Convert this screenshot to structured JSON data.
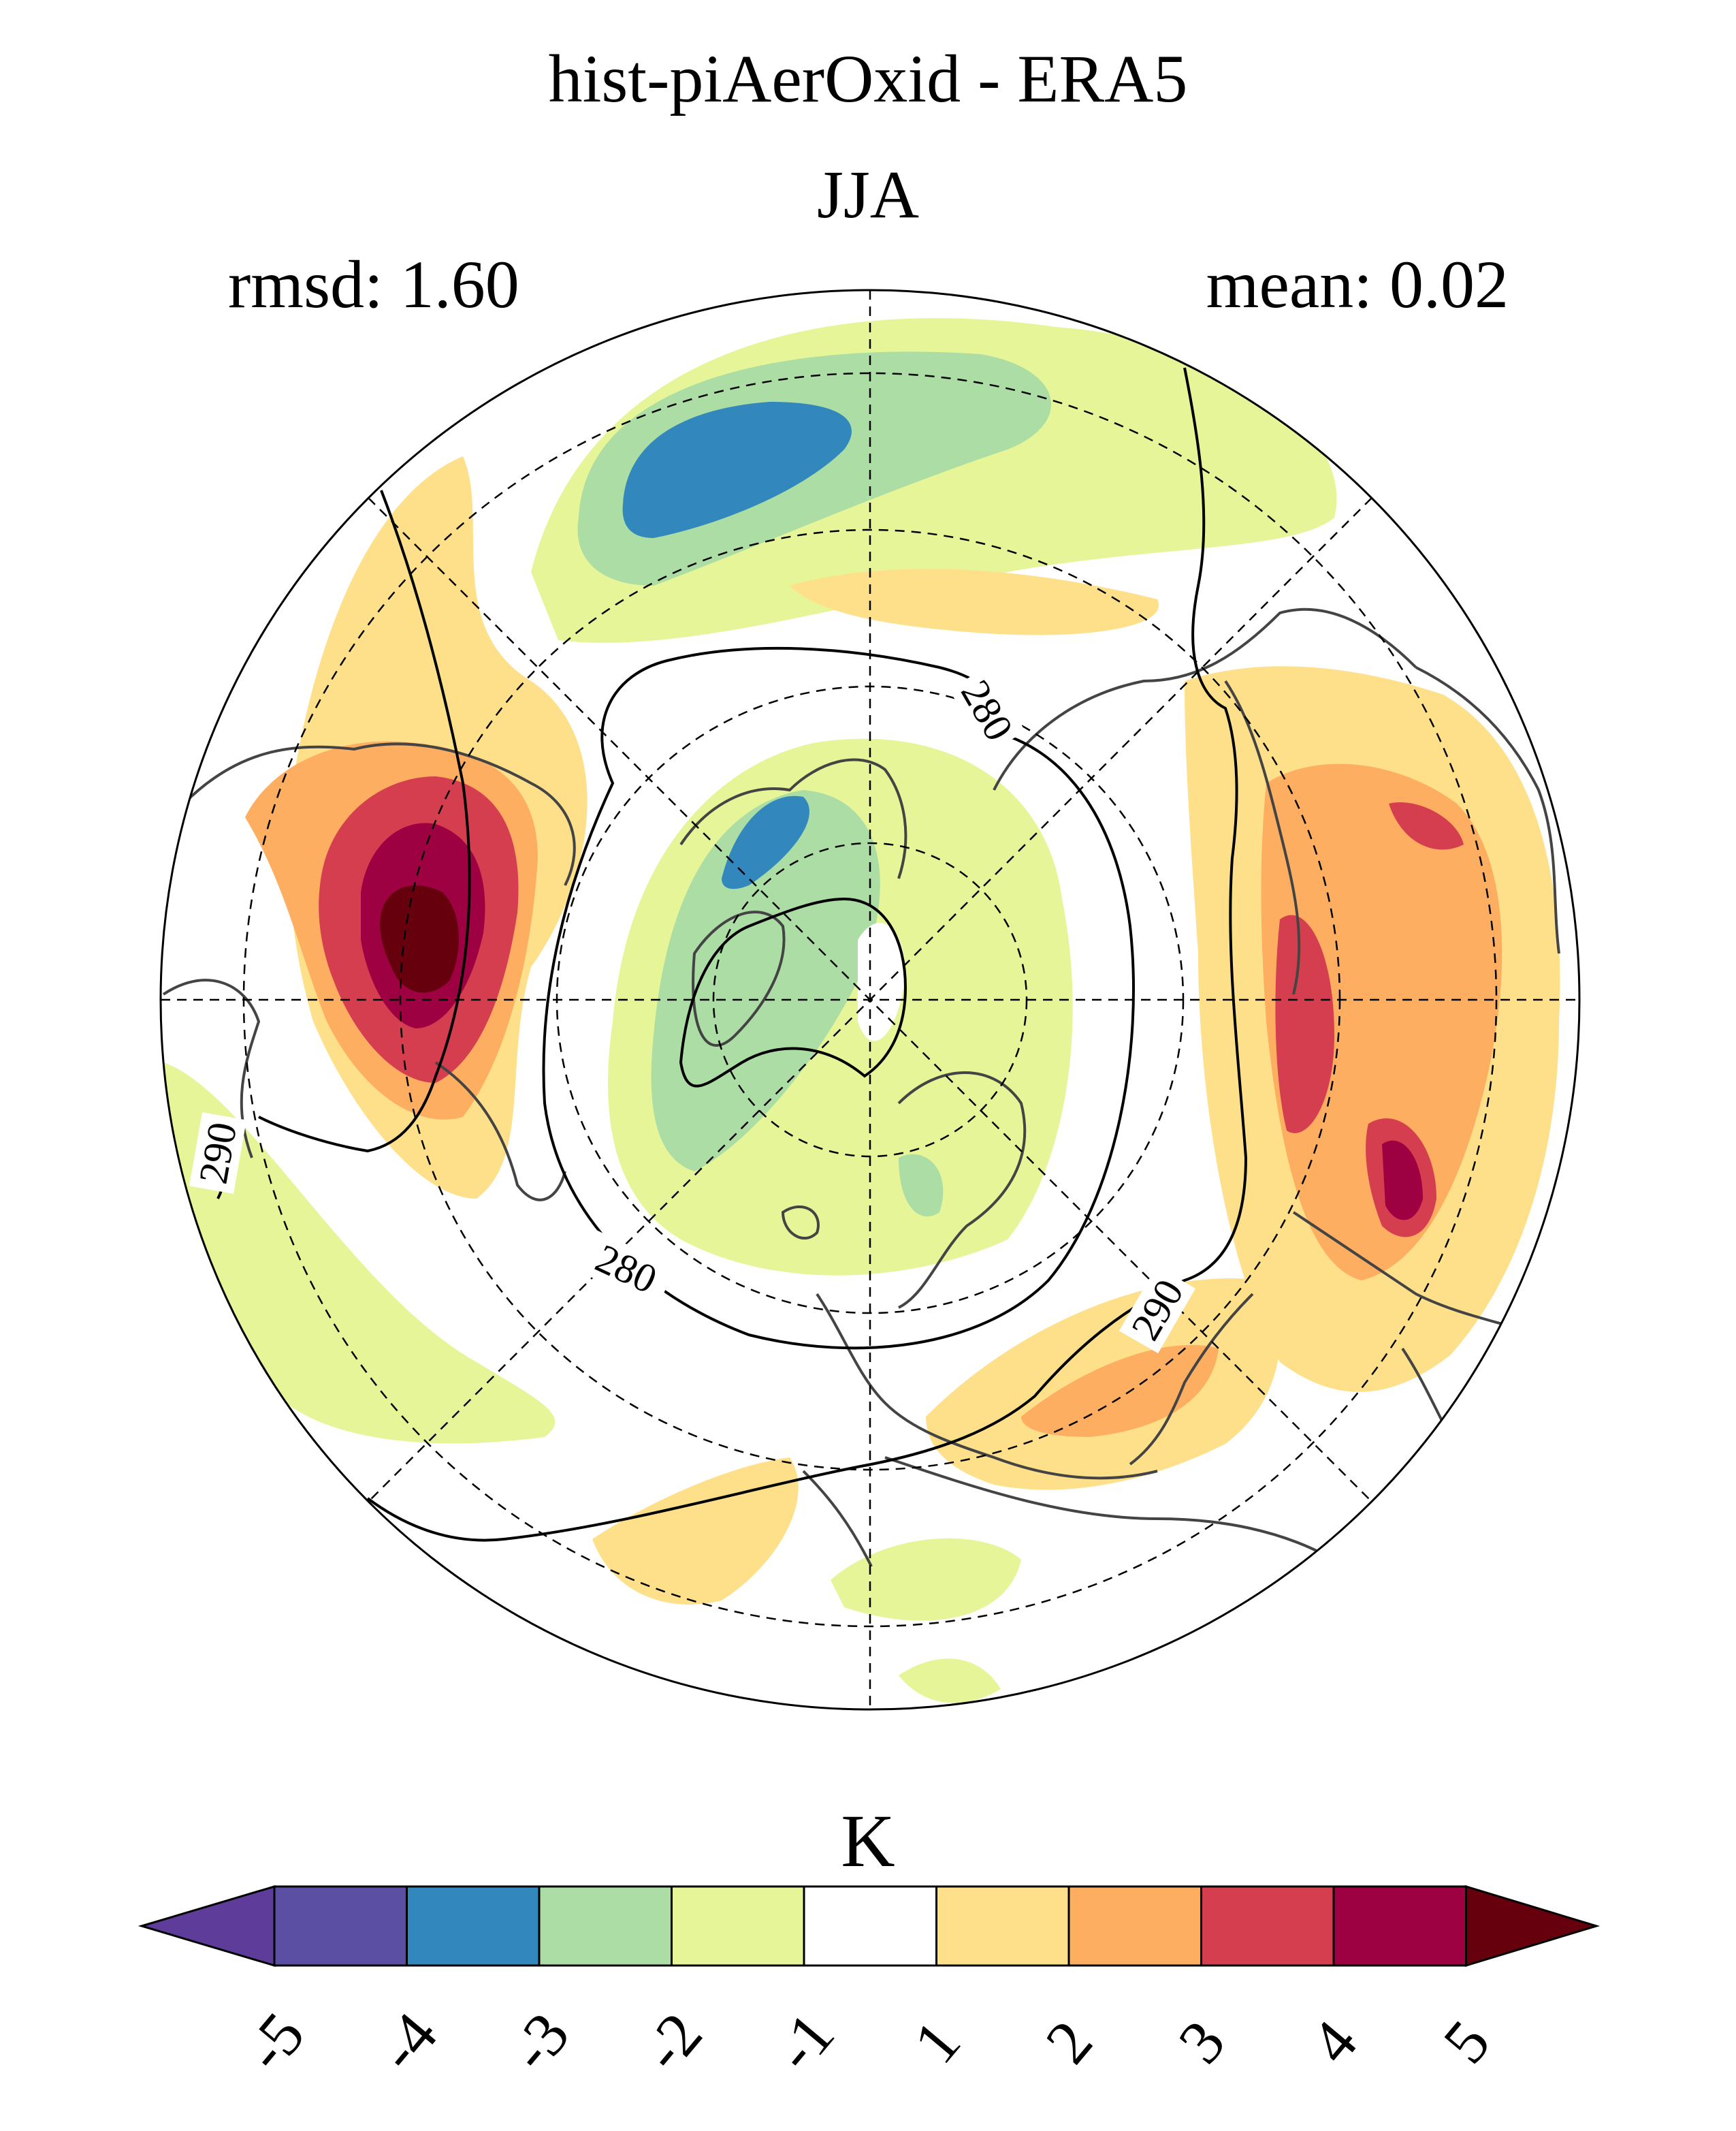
{
  "title": "hist-piAerOxid - ERA5",
  "season": "JJA",
  "rmsd": "rmsd: 1.60",
  "mean": "mean: 0.02",
  "units": "K",
  "contour_labels": [
    "280",
    "280",
    "290",
    "290"
  ],
  "colorbar": {
    "levels": [
      "-5",
      "-4",
      "-3",
      "-2",
      "-1",
      "1",
      "2",
      "3",
      "4",
      "5"
    ],
    "colors": [
      "#5e3c99",
      "#5b4fa3",
      "#3288bd",
      "#abdda4",
      "#e6f598",
      "#ffffff",
      "#fee08b",
      "#fdae61",
      "#d53e4f",
      "#9e0142",
      "#67000d"
    ]
  }
}
